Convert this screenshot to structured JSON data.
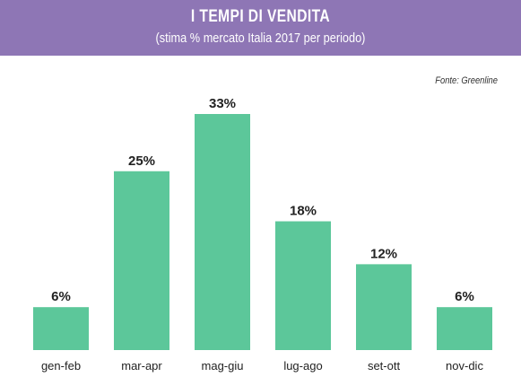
{
  "header": {
    "title": "I TEMPI DI VENDITA",
    "subtitle": "(stima % mercato Italia 2017 per periodo)"
  },
  "source": "Fonte: Greenline",
  "colors": {
    "banner": "#8e76b5",
    "bar": "#5cc79a"
  },
  "chart_data": {
    "type": "bar",
    "title": "I TEMPI DI VENDITA",
    "subtitle": "(stima % mercato Italia 2017 per periodo)",
    "categories": [
      "gen-feb",
      "mar-apr",
      "mag-giu",
      "lug-ago",
      "set-ott",
      "nov-dic"
    ],
    "values": [
      6,
      25,
      33,
      18,
      12,
      6
    ],
    "value_labels": [
      "6%",
      "25%",
      "33%",
      "18%",
      "12%",
      "6%"
    ],
    "xlabel": "",
    "ylabel": "",
    "ylim": [
      0,
      33
    ],
    "grid": false,
    "legend": "none"
  }
}
